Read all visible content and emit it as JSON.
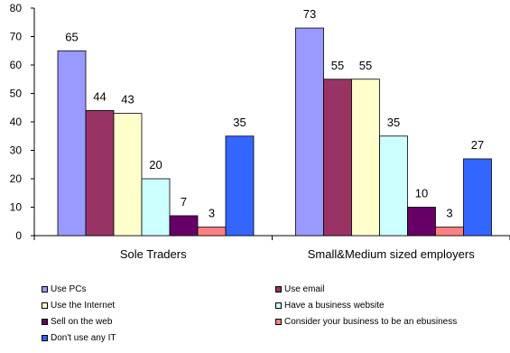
{
  "chart_data": {
    "type": "bar",
    "categories": [
      "Sole Traders",
      "Small&Medium sized employers"
    ],
    "series": [
      {
        "name": "Use PCs",
        "values": [
          65,
          73
        ],
        "color": "#9999ff"
      },
      {
        "name": "Use email",
        "values": [
          44,
          55
        ],
        "color": "#993366"
      },
      {
        "name": "Use the Internet",
        "values": [
          43,
          55
        ],
        "color": "#ffffcc"
      },
      {
        "name": "Have a business website",
        "values": [
          20,
          35
        ],
        "color": "#ccffff"
      },
      {
        "name": "Sell on the web",
        "values": [
          7,
          10
        ],
        "color": "#660066"
      },
      {
        "name": "Consider your business to be an ebusiness",
        "values": [
          3,
          3
        ],
        "color": "#ff8080"
      },
      {
        "name": "Don't use any IT",
        "values": [
          35,
          27
        ],
        "color": "#3366ff"
      }
    ],
    "ylim": [
      0,
      80
    ],
    "yticks": [
      0,
      10,
      20,
      30,
      40,
      50,
      60,
      70,
      80
    ],
    "grid": false,
    "legend_position": "bottom",
    "data_labels": true
  }
}
